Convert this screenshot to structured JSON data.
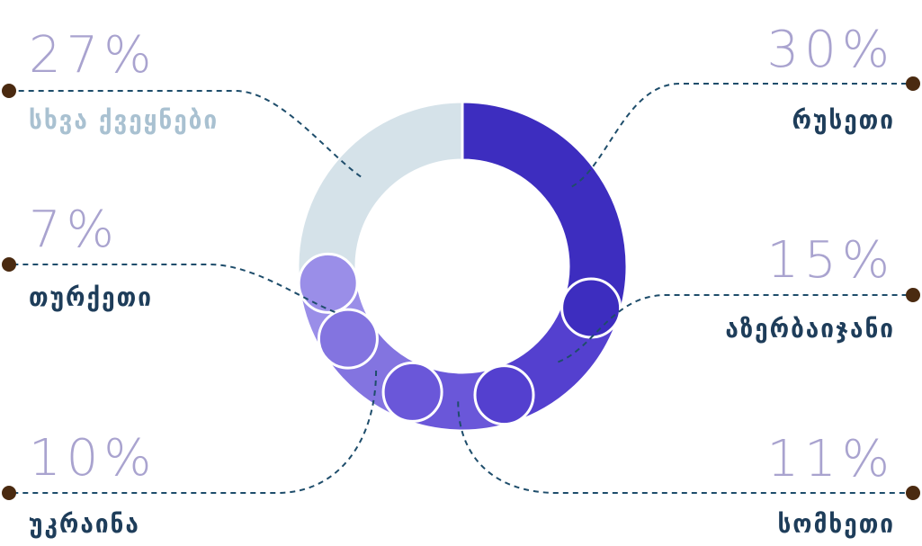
{
  "chart_data": {
    "type": "pie",
    "style": "donut",
    "slices": [
      {
        "label": "რუსეთი",
        "value": 30,
        "value_label": "30%",
        "color": "#3d2dbf",
        "label_color": "#1e3d5a",
        "side": "right",
        "row": 1
      },
      {
        "label": "აზერბაიჯანი",
        "value": 15,
        "value_label": "15%",
        "color": "#5440cf",
        "label_color": "#1e3d5a",
        "side": "right",
        "row": 2
      },
      {
        "label": "სომხეთი",
        "value": 11,
        "value_label": "11%",
        "color": "#6a57d9",
        "label_color": "#1e3d5a",
        "side": "right",
        "row": 3
      },
      {
        "label": "უკრაინა",
        "value": 10,
        "value_label": "10%",
        "color": "#8374e0",
        "label_color": "#1e3d5a",
        "side": "left",
        "row": 3
      },
      {
        "label": "თურქეთი",
        "value": 7,
        "value_label": "7%",
        "color": "#9a8ee8",
        "label_color": "#1e3d5a",
        "side": "left",
        "row": 2
      },
      {
        "label": "სხვა ქვეყნები",
        "value": 27,
        "value_label": "27%",
        "color": "#d5e2e9",
        "label_color": "#a9c1d1",
        "side": "left",
        "row": 1
      }
    ],
    "start_direction": "top",
    "order": "clockwise",
    "connector_color": "#1e4d6b",
    "marker_color": "#4a2a10",
    "value_label_color": "#a9a3cf"
  }
}
